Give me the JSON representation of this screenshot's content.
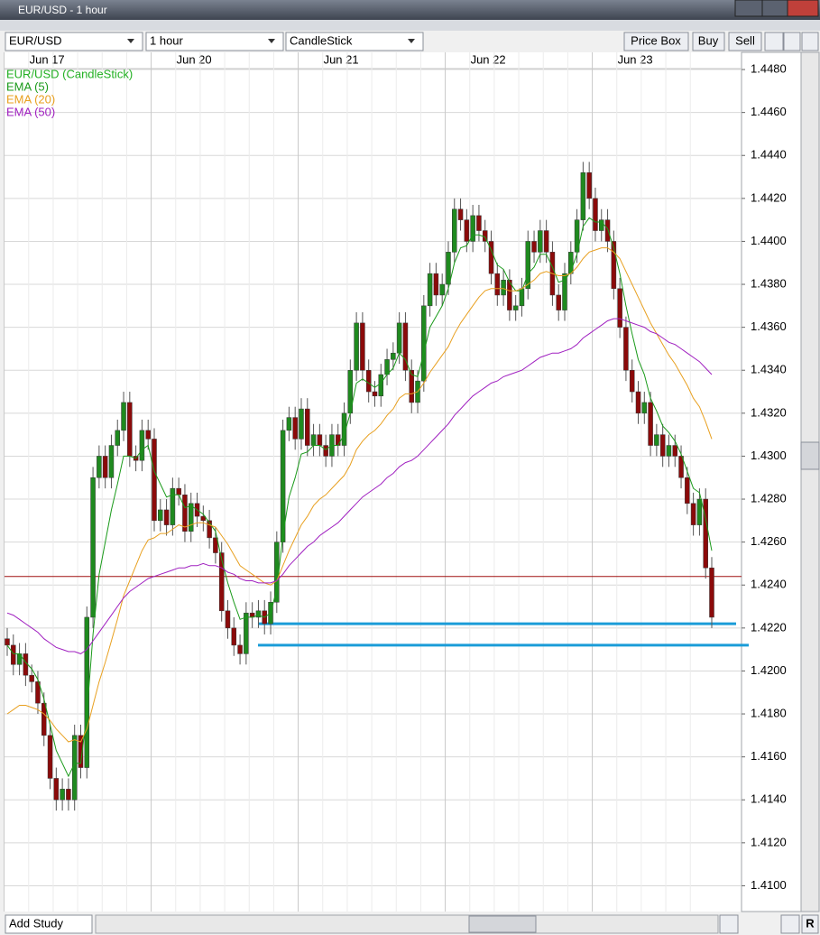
{
  "window": {
    "title": "EUR/USD - 1 hour",
    "symbol": "EUR/USD",
    "interval": "1 hour",
    "chart_style": "CandleStick",
    "buttons": [
      "Price Box",
      "Buy",
      "Sell"
    ],
    "add_study": "Add Study",
    "reset": "R"
  },
  "chart_data": {
    "type": "candlestick",
    "grid": true,
    "up_color": "#1f8a1f",
    "down_color": "#8b0a0a",
    "categories": [
      "Jun 17",
      null,
      null,
      null,
      null,
      null,
      null,
      null,
      null,
      null,
      null,
      null,
      null,
      null,
      null,
      null,
      null,
      null,
      null,
      null,
      null,
      null,
      null,
      null,
      "Jun 20",
      null,
      null,
      null,
      null,
      null,
      null,
      null,
      null,
      null,
      null,
      null,
      null,
      null,
      null,
      null,
      null,
      null,
      null,
      null,
      null,
      null,
      null,
      null,
      "Jun 21",
      null,
      null,
      null,
      null,
      null,
      null,
      null,
      null,
      null,
      null,
      null,
      null,
      null,
      null,
      null,
      null,
      null,
      null,
      null,
      null,
      null,
      null,
      null,
      "Jun 22",
      null,
      null,
      null,
      null,
      null,
      null,
      null,
      null,
      null,
      null,
      null,
      null,
      null,
      null,
      null,
      null,
      null,
      null,
      null,
      null,
      null,
      null,
      null,
      "Jun 23",
      null,
      null,
      null,
      null,
      null,
      null,
      null,
      null,
      null,
      null,
      null,
      null,
      null,
      null,
      null,
      null,
      null,
      null,
      null
    ],
    "ylim": [
      1.4088,
      1.4488
    ],
    "yticks": [
      {
        "value": 1.41,
        "label": "1.4100"
      },
      {
        "value": 1.412,
        "label": "1.4120"
      },
      {
        "value": 1.414,
        "label": "1.4140"
      },
      {
        "value": 1.416,
        "label": "1.4160"
      },
      {
        "value": 1.418,
        "label": "1.4180"
      },
      {
        "value": 1.42,
        "label": "1.4200"
      },
      {
        "value": 1.422,
        "label": "1.4220"
      },
      {
        "value": 1.424,
        "label": "1.4240"
      },
      {
        "value": 1.426,
        "label": "1.4260"
      },
      {
        "value": 1.428,
        "label": "1.4280"
      },
      {
        "value": 1.43,
        "label": "1.4300"
      },
      {
        "value": 1.432,
        "label": "1.4320"
      },
      {
        "value": 1.434,
        "label": "1.4340"
      },
      {
        "value": 1.436,
        "label": "1.4360"
      },
      {
        "value": 1.438,
        "label": "1.4380"
      },
      {
        "value": 1.44,
        "label": "1.4400"
      },
      {
        "value": 1.442,
        "label": "1.4420"
      },
      {
        "value": 1.444,
        "label": "1.4440"
      },
      {
        "value": 1.446,
        "label": "1.4460"
      },
      {
        "value": 1.448,
        "label": "1.4480"
      }
    ],
    "levels": [
      {
        "value": 1.4244,
        "color": "#a01010"
      },
      {
        "value": 1.4222,
        "color": "#1a9cd8"
      },
      {
        "value": 1.4212,
        "color": "#1a9cd8"
      }
    ],
    "series": [
      {
        "name": "EUR/USD (CandleStick)",
        "color": "#22b022",
        "open": [
          1.4215,
          1.4212,
          1.4203,
          1.4208,
          1.4198,
          1.4195,
          1.4185,
          1.417,
          1.415,
          1.414,
          1.4145,
          1.414,
          1.417,
          1.4155,
          1.4225,
          1.429,
          1.43,
          1.429,
          1.4305,
          1.4312,
          1.4325,
          1.43,
          1.4298,
          1.4312,
          1.4308,
          1.427,
          1.4275,
          1.4268,
          1.4285,
          1.4282,
          1.4265,
          1.4278,
          1.4272,
          1.427,
          1.4262,
          1.4255,
          1.4228,
          1.422,
          1.4212,
          1.4208,
          1.4227,
          1.4225,
          1.4228,
          1.4222,
          1.4232,
          1.426,
          1.4312,
          1.4318,
          1.4308,
          1.4322,
          1.4305,
          1.431,
          1.4305,
          1.43,
          1.431,
          1.4305,
          1.432,
          1.434,
          1.4362,
          1.434,
          1.433,
          1.4328,
          1.4338,
          1.4345,
          1.4348,
          1.4362,
          1.434,
          1.4325,
          1.4335,
          1.437,
          1.4385,
          1.4375,
          1.438,
          1.4395,
          1.4415,
          1.441,
          1.44,
          1.4412,
          1.4405,
          1.44,
          1.4385,
          1.4375,
          1.4382,
          1.4368,
          1.437,
          1.4378,
          1.44,
          1.4395,
          1.4405,
          1.4395,
          1.4375,
          1.4368,
          1.4385,
          1.4395,
          1.441,
          1.4432,
          1.442,
          1.4405,
          1.441,
          1.44,
          1.4378,
          1.436,
          1.434,
          1.433,
          1.432,
          1.4325,
          1.4305,
          1.431,
          1.43,
          1.4305,
          1.43,
          1.429,
          1.4278,
          1.4268,
          1.428,
          1.4248
        ],
        "high": [
          1.422,
          1.4217,
          1.4213,
          1.4213,
          1.4203,
          1.42,
          1.419,
          1.4175,
          1.4155,
          1.415,
          1.415,
          1.4175,
          1.4175,
          1.423,
          1.4295,
          1.4305,
          1.4305,
          1.431,
          1.4317,
          1.433,
          1.433,
          1.4305,
          1.4317,
          1.4317,
          1.4313,
          1.428,
          1.428,
          1.429,
          1.429,
          1.4287,
          1.4283,
          1.4283,
          1.4277,
          1.4275,
          1.4267,
          1.426,
          1.4233,
          1.4225,
          1.4217,
          1.4232,
          1.4232,
          1.4233,
          1.4233,
          1.4237,
          1.4265,
          1.4317,
          1.4323,
          1.4323,
          1.4327,
          1.4327,
          1.4315,
          1.4315,
          1.431,
          1.4315,
          1.4315,
          1.4325,
          1.4345,
          1.4367,
          1.4367,
          1.4345,
          1.4335,
          1.4343,
          1.435,
          1.4353,
          1.4367,
          1.4367,
          1.4345,
          1.434,
          1.4375,
          1.439,
          1.439,
          1.4385,
          1.44,
          1.442,
          1.442,
          1.4415,
          1.4417,
          1.4417,
          1.441,
          1.4405,
          1.439,
          1.4387,
          1.4387,
          1.4375,
          1.4383,
          1.4405,
          1.4405,
          1.441,
          1.441,
          1.44,
          1.438,
          1.439,
          1.44,
          1.4415,
          1.4437,
          1.4437,
          1.4425,
          1.4415,
          1.4415,
          1.4405,
          1.4383,
          1.4365,
          1.4345,
          1.4335,
          1.433,
          1.433,
          1.4315,
          1.4315,
          1.431,
          1.431,
          1.4305,
          1.4295,
          1.4283,
          1.4285,
          1.4285,
          1.4253
        ],
        "low": [
          1.4207,
          1.4198,
          1.4198,
          1.4193,
          1.419,
          1.418,
          1.4165,
          1.4145,
          1.4135,
          1.4135,
          1.4135,
          1.4135,
          1.415,
          1.415,
          1.422,
          1.4285,
          1.4285,
          1.4285,
          1.43,
          1.4307,
          1.4295,
          1.4293,
          1.4293,
          1.4303,
          1.4265,
          1.4265,
          1.4263,
          1.4263,
          1.4277,
          1.426,
          1.426,
          1.4267,
          1.4265,
          1.4257,
          1.425,
          1.4223,
          1.4215,
          1.4207,
          1.4203,
          1.4203,
          1.422,
          1.422,
          1.4217,
          1.4217,
          1.4227,
          1.4255,
          1.4307,
          1.4303,
          1.4303,
          1.43,
          1.43,
          1.43,
          1.4295,
          1.4295,
          1.43,
          1.43,
          1.4315,
          1.4335,
          1.4335,
          1.4325,
          1.4323,
          1.4323,
          1.4333,
          1.434,
          1.4343,
          1.4335,
          1.432,
          1.432,
          1.433,
          1.4365,
          1.437,
          1.437,
          1.4375,
          1.439,
          1.4405,
          1.4395,
          1.4395,
          1.44,
          1.4395,
          1.438,
          1.437,
          1.437,
          1.4363,
          1.4363,
          1.4365,
          1.4373,
          1.439,
          1.439,
          1.439,
          1.437,
          1.4363,
          1.4363,
          1.438,
          1.439,
          1.4405,
          1.4415,
          1.44,
          1.44,
          1.4395,
          1.4373,
          1.4355,
          1.4335,
          1.4325,
          1.4315,
          1.4315,
          1.43,
          1.43,
          1.4295,
          1.4295,
          1.4295,
          1.4285,
          1.4273,
          1.4263,
          1.4263,
          1.4243,
          1.422
        ],
        "close": [
          1.4212,
          1.4203,
          1.4208,
          1.4198,
          1.4195,
          1.4185,
          1.417,
          1.415,
          1.414,
          1.4145,
          1.414,
          1.417,
          1.4155,
          1.4225,
          1.429,
          1.43,
          1.429,
          1.4305,
          1.4312,
          1.4325,
          1.43,
          1.4298,
          1.4312,
          1.4308,
          1.427,
          1.4275,
          1.4268,
          1.4285,
          1.4282,
          1.4265,
          1.4278,
          1.4272,
          1.427,
          1.4262,
          1.4255,
          1.4228,
          1.422,
          1.4212,
          1.4208,
          1.4227,
          1.4225,
          1.4228,
          1.4222,
          1.4232,
          1.426,
          1.4312,
          1.4318,
          1.4308,
          1.4322,
          1.4305,
          1.431,
          1.4305,
          1.43,
          1.431,
          1.4305,
          1.432,
          1.434,
          1.4362,
          1.434,
          1.433,
          1.4328,
          1.4338,
          1.4345,
          1.4348,
          1.4362,
          1.434,
          1.4325,
          1.4335,
          1.437,
          1.4385,
          1.4375,
          1.438,
          1.4395,
          1.4415,
          1.441,
          1.44,
          1.4412,
          1.4405,
          1.44,
          1.4385,
          1.4375,
          1.4382,
          1.4368,
          1.437,
          1.4378,
          1.44,
          1.4395,
          1.4405,
          1.4395,
          1.4375,
          1.4368,
          1.4385,
          1.4395,
          1.441,
          1.4432,
          1.442,
          1.4405,
          1.441,
          1.44,
          1.4378,
          1.436,
          1.434,
          1.433,
          1.432,
          1.4325,
          1.4305,
          1.431,
          1.43,
          1.4305,
          1.43,
          1.429,
          1.4278,
          1.4268,
          1.428,
          1.4248,
          1.4225
        ]
      },
      {
        "name": "EMA (5)",
        "color": "#1a9a1a",
        "values": [
          1.4212,
          1.4208,
          1.4208,
          1.4204,
          1.4201,
          1.4196,
          1.4187,
          1.4175,
          1.4163,
          1.4157,
          1.4151,
          1.4157,
          1.4157,
          1.418,
          1.4217,
          1.4245,
          1.426,
          1.4275,
          1.4287,
          1.43,
          1.43,
          1.4299,
          1.4303,
          1.4305,
          1.4293,
          1.4287,
          1.4281,
          1.4282,
          1.4282,
          1.4276,
          1.4277,
          1.4275,
          1.4273,
          1.4269,
          1.4265,
          1.4252,
          1.4241,
          1.4232,
          1.4224,
          1.4225,
          1.4225,
          1.4226,
          1.4225,
          1.4227,
          1.4238,
          1.4263,
          1.4281,
          1.429,
          1.4301,
          1.4302,
          1.4305,
          1.4305,
          1.4303,
          1.4305,
          1.4305,
          1.431,
          1.432,
          1.4334,
          1.4336,
          1.4334,
          1.4332,
          1.4334,
          1.4338,
          1.4341,
          1.4348,
          1.4345,
          1.4338,
          1.4337,
          1.4348,
          1.436,
          1.4365,
          1.437,
          1.4378,
          1.439,
          1.4397,
          1.4398,
          1.4403,
          1.4403,
          1.4402,
          1.4396,
          1.4389,
          1.4387,
          1.4381,
          1.4377,
          1.4377,
          1.4385,
          1.4388,
          1.4394,
          1.4394,
          1.4388,
          1.4381,
          1.4382,
          1.4386,
          1.4394,
          1.4407,
          1.4411,
          1.4409,
          1.4409,
          1.4406,
          1.4397,
          1.4385,
          1.437,
          1.4357,
          1.4345,
          1.4338,
          1.4327,
          1.4321,
          1.4314,
          1.4311,
          1.4307,
          1.4301,
          1.4293,
          1.4285,
          1.4283,
          1.4271,
          1.4256
        ]
      },
      {
        "name": "EMA (20)",
        "color": "#e8a020",
        "values": [
          1.418,
          1.4182,
          1.4184,
          1.4184,
          1.4183,
          1.4182,
          1.418,
          1.4177,
          1.4173,
          1.417,
          1.4167,
          1.4168,
          1.4167,
          1.4173,
          1.4184,
          1.4195,
          1.4204,
          1.4214,
          1.4224,
          1.4235,
          1.4242,
          1.4249,
          1.4256,
          1.4261,
          1.4262,
          1.4264,
          1.4264,
          1.4266,
          1.4268,
          1.4267,
          1.4268,
          1.4269,
          1.4269,
          1.4268,
          1.4267,
          1.4263,
          1.4259,
          1.4254,
          1.4249,
          1.4247,
          1.4245,
          1.4243,
          1.4241,
          1.424,
          1.4242,
          1.4249,
          1.4256,
          1.4262,
          1.4268,
          1.4272,
          1.4277,
          1.428,
          1.4282,
          1.4285,
          1.4288,
          1.4291,
          1.4296,
          1.4303,
          1.4307,
          1.431,
          1.4312,
          1.4315,
          1.4319,
          1.4322,
          1.4327,
          1.4329,
          1.4329,
          1.433,
          1.4334,
          1.4339,
          1.4343,
          1.4347,
          1.4351,
          1.4357,
          1.4362,
          1.4366,
          1.437,
          1.4374,
          1.4377,
          1.4378,
          1.4378,
          1.4378,
          1.4377,
          1.4377,
          1.4378,
          1.438,
          1.4382,
          1.4385,
          1.4386,
          1.4385,
          1.4384,
          1.4384,
          1.4385,
          1.4388,
          1.4392,
          1.4395,
          1.4396,
          1.4397,
          1.4397,
          1.4395,
          1.4392,
          1.4386,
          1.438,
          1.4374,
          1.4368,
          1.4362,
          1.4357,
          1.4352,
          1.4347,
          1.4343,
          1.4338,
          1.4333,
          1.4327,
          1.4323,
          1.4316,
          1.4308
        ]
      },
      {
        "name": "EMA (50)",
        "color": "#a020c0",
        "values": [
          1.4227,
          1.4226,
          1.4224,
          1.4222,
          1.422,
          1.4218,
          1.4215,
          1.4213,
          1.4211,
          1.421,
          1.4209,
          1.4209,
          1.4208,
          1.421,
          1.4214,
          1.4218,
          1.4222,
          1.4226,
          1.423,
          1.4234,
          1.4237,
          1.4239,
          1.4241,
          1.4243,
          1.4244,
          1.4245,
          1.4246,
          1.4247,
          1.4248,
          1.4248,
          1.4249,
          1.4249,
          1.425,
          1.4249,
          1.4249,
          1.4248,
          1.4246,
          1.4245,
          1.4243,
          1.4242,
          1.4242,
          1.4241,
          1.4241,
          1.4241,
          1.4242,
          1.4245,
          1.4249,
          1.4252,
          1.4255,
          1.4258,
          1.426,
          1.4263,
          1.4265,
          1.4267,
          1.4269,
          1.4272,
          1.4275,
          1.4278,
          1.4281,
          1.4283,
          1.4285,
          1.4287,
          1.429,
          1.4292,
          1.4295,
          1.4297,
          1.4298,
          1.43,
          1.4303,
          1.4306,
          1.4309,
          1.4312,
          1.4315,
          1.4319,
          1.4322,
          1.4325,
          1.4328,
          1.433,
          1.4332,
          1.4334,
          1.4335,
          1.4337,
          1.4338,
          1.4339,
          1.434,
          1.4342,
          1.4344,
          1.4346,
          1.4347,
          1.4348,
          1.4348,
          1.4349,
          1.435,
          1.4352,
          1.4355,
          1.4357,
          1.4359,
          1.4361,
          1.4363,
          1.4364,
          1.4364,
          1.4363,
          1.4362,
          1.4361,
          1.436,
          1.4358,
          1.4357,
          1.4355,
          1.4353,
          1.4352,
          1.435,
          1.4348,
          1.4346,
          1.4344,
          1.4341,
          1.4338
        ]
      }
    ]
  }
}
